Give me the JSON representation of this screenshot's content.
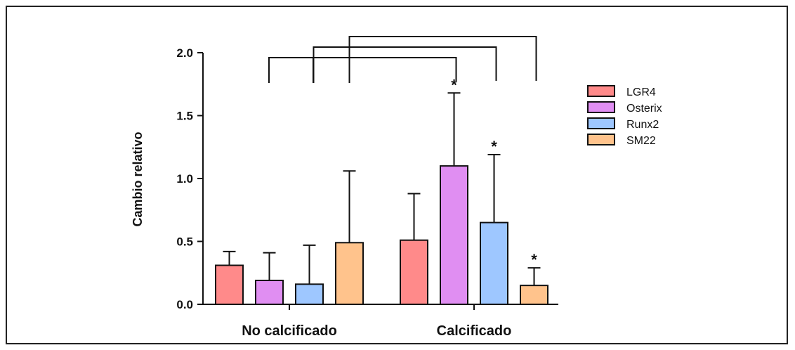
{
  "chart_data": {
    "type": "bar",
    "title": "",
    "xlabel": "",
    "ylabel": "Cambio relativo",
    "ylim": [
      0,
      2.0
    ],
    "yticks": [
      "0.0",
      "0.5",
      "1.0",
      "1.5",
      "2.0"
    ],
    "categories": [
      "No calcificado",
      "Calcificado"
    ],
    "legend_position": "right",
    "grid": false,
    "series": [
      {
        "name": "LGR4",
        "color": "#ff8a8a",
        "values": [
          0.31,
          0.51
        ],
        "errors": [
          0.11,
          0.37
        ],
        "significance": [
          "",
          ""
        ]
      },
      {
        "name": "Osterix",
        "color": "#e08ef2",
        "values": [
          0.19,
          1.1
        ],
        "errors": [
          0.22,
          0.58
        ],
        "significance": [
          "",
          "*"
        ]
      },
      {
        "name": "Runx2",
        "color": "#9ec7ff",
        "values": [
          0.16,
          0.65
        ],
        "errors": [
          0.31,
          0.54
        ],
        "significance": [
          "",
          "*"
        ]
      },
      {
        "name": "SM22",
        "color": "#ffc38c",
        "values": [
          0.49,
          0.15
        ],
        "errors": [
          0.57,
          0.14
        ],
        "significance": [
          "",
          "*"
        ]
      }
    ],
    "comparison_brackets": [
      {
        "from_series": "Osterix",
        "from_category": "No calcificado",
        "to_series": "Osterix",
        "to_category": "Calcificado"
      },
      {
        "from_series": "Runx2",
        "from_category": "No calcificado",
        "to_series": "Runx2",
        "to_category": "Calcificado"
      },
      {
        "from_series": "SM22",
        "from_category": "No calcificado",
        "to_series": "SM22",
        "to_category": "Calcificado"
      }
    ]
  }
}
